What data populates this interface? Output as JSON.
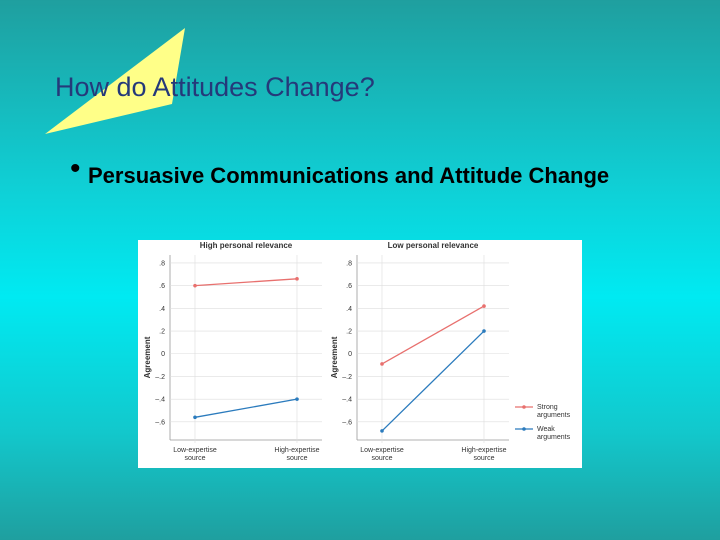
{
  "title": "How do Attitudes Change?",
  "bullet": "Persuasive Communications and Attitude Change",
  "chart_data": [
    {
      "type": "line",
      "title": "High personal relevance",
      "y_label": "Agreement",
      "categories": [
        "Low-expertise source",
        "High-expertise source"
      ],
      "series": [
        {
          "name": "Strong arguments",
          "color": "#e8706e",
          "values": [
            0.6,
            0.66
          ]
        },
        {
          "name": "Weak arguments",
          "color": "#2b7bbd",
          "values": [
            -0.56,
            -0.4
          ]
        }
      ],
      "ylim": [
        -0.76,
        0.87
      ],
      "yticks": [
        {
          "value": 0.8,
          "label": ".8"
        },
        {
          "value": 0.6,
          "label": ".6"
        },
        {
          "value": 0.4,
          "label": ".4"
        },
        {
          "value": 0.2,
          "label": ".2"
        },
        0,
        {
          "value": -0.2,
          "label": "–.2"
        },
        {
          "value": -0.4,
          "label": "–.4"
        },
        {
          "value": -0.6,
          "label": "–.6"
        }
      ],
      "grid": true
    },
    {
      "type": "line",
      "title": "Low personal relevance",
      "y_label": "Agreement",
      "categories": [
        "Low-expertise source",
        "High-expertise source"
      ],
      "series": [
        {
          "name": "Strong arguments",
          "color": "#e8706e",
          "values": [
            -0.09,
            0.42
          ]
        },
        {
          "name": "Weak arguments",
          "color": "#2b7bbd",
          "values": [
            -0.68,
            0.2
          ]
        }
      ],
      "ylim": [
        -0.76,
        0.87
      ],
      "yticks": [
        {
          "value": 0.8,
          "label": ".8"
        },
        {
          "value": 0.6,
          "label": ".6"
        },
        {
          "value": 0.4,
          "label": ".4"
        },
        {
          "value": 0.2,
          "label": ".2"
        },
        0,
        {
          "value": -0.2,
          "label": "–.2"
        },
        {
          "value": -0.4,
          "label": "–.4"
        },
        {
          "value": -0.6,
          "label": "–.6"
        }
      ],
      "grid": true,
      "legend": "right"
    }
  ]
}
